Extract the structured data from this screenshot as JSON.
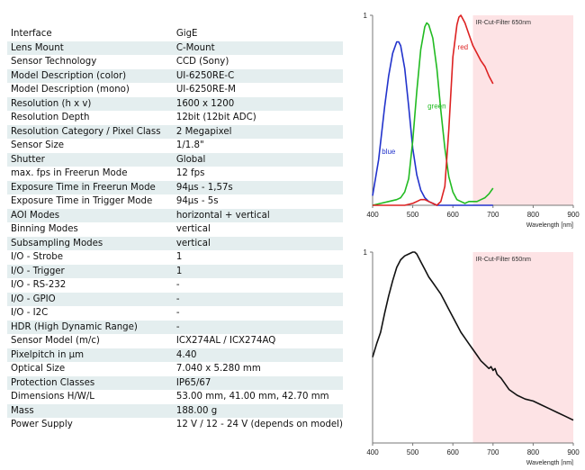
{
  "specs": [
    {
      "label": "Interface",
      "value": "GigE"
    },
    {
      "label": "Lens Mount",
      "value": "C-Mount"
    },
    {
      "label": "Sensor Technology",
      "value": "CCD (Sony)"
    },
    {
      "label": "Model Description (color)",
      "value": "UI-6250RE-C"
    },
    {
      "label": "Model Description (mono)",
      "value": "UI-6250RE-M"
    },
    {
      "label": "Resolution (h x v)",
      "value": "1600 x 1200"
    },
    {
      "label": "Resolution Depth",
      "value": "12bit (12bit ADC)"
    },
    {
      "label": "Resolution Category / Pixel Class",
      "value": "2 Megapixel"
    },
    {
      "label": "Sensor Size",
      "value": "1/1.8\""
    },
    {
      "label": "Shutter",
      "value": "Global"
    },
    {
      "label": "max. fps in Freerun Mode",
      "value": "12 fps"
    },
    {
      "label": "Exposure Time in Freerun Mode",
      "value": "94µs - 1,57s"
    },
    {
      "label": "Exposure Time in Trigger Mode",
      "value": "94µs - 5s"
    },
    {
      "label": "AOI Modes",
      "value": "horizontal + vertical"
    },
    {
      "label": "Binning Modes",
      "value": "vertical"
    },
    {
      "label": "Subsampling Modes",
      "value": "vertical"
    },
    {
      "label": "I/O - Strobe",
      "value": "1"
    },
    {
      "label": "I/O - Trigger",
      "value": "1"
    },
    {
      "label": "I/O - RS-232",
      "value": "-"
    },
    {
      "label": "I/O - GPIO",
      "value": "-"
    },
    {
      "label": "I/O - I2C",
      "value": "-"
    },
    {
      "label": "HDR (High Dynamic Range)",
      "value": "-"
    },
    {
      "label": "Sensor Model (m/c)",
      "value": "ICX274AL / ICX274AQ"
    },
    {
      "label": "Pixelpitch in µm",
      "value": "4.40"
    },
    {
      "label": "Optical Size",
      "value": "7.040 x 5.280 mm"
    },
    {
      "label": "Protection Classes",
      "value": "IP65/67"
    },
    {
      "label": "Dimensions H/W/L",
      "value": "53.00 mm, 41.00 mm, 42.70 mm"
    },
    {
      "label": "Mass",
      "value": "188.00 g"
    },
    {
      "label": "Power Supply",
      "value": "12 V / 12 - 24 V (depends on model)"
    }
  ],
  "chart_data": [
    {
      "type": "line",
      "xlabel": "Wavelength [nm]",
      "xticks": [
        400,
        500,
        600,
        700,
        800,
        900
      ],
      "xlim": [
        400,
        900
      ],
      "ylim": [
        0,
        1
      ],
      "yticks": [
        1
      ],
      "band": {
        "from": 650,
        "to": 900,
        "label": "IR-Cut-Filter 650nm",
        "color": "#fde3e5"
      },
      "series": [
        {
          "name": "blue",
          "color": "#2233cc",
          "x": [
            400,
            415,
            430,
            440,
            450,
            460,
            465,
            470,
            480,
            490,
            500,
            510,
            520,
            530,
            540,
            550,
            560,
            580,
            600,
            620,
            640,
            660,
            680,
            700
          ],
          "y": [
            0.05,
            0.24,
            0.52,
            0.68,
            0.8,
            0.86,
            0.86,
            0.84,
            0.72,
            0.52,
            0.3,
            0.16,
            0.08,
            0.04,
            0.02,
            0.01,
            0,
            0,
            0,
            0,
            0,
            0,
            0,
            0
          ]
        },
        {
          "name": "green",
          "color": "#22bb22",
          "x": [
            400,
            420,
            440,
            460,
            470,
            480,
            490,
            500,
            510,
            520,
            530,
            535,
            540,
            550,
            560,
            570,
            580,
            590,
            600,
            610,
            620,
            630,
            640,
            650,
            660,
            670,
            680,
            690,
            700
          ],
          "y": [
            0,
            0.01,
            0.02,
            0.03,
            0.04,
            0.07,
            0.14,
            0.34,
            0.6,
            0.82,
            0.94,
            0.96,
            0.95,
            0.88,
            0.72,
            0.5,
            0.3,
            0.15,
            0.07,
            0.03,
            0.02,
            0.01,
            0.02,
            0.02,
            0.02,
            0.03,
            0.04,
            0.06,
            0.09
          ]
        },
        {
          "name": "red",
          "color": "#dd2222",
          "x": [
            400,
            460,
            480,
            500,
            510,
            520,
            530,
            540,
            550,
            560,
            570,
            580,
            590,
            600,
            610,
            615,
            620,
            630,
            640,
            650,
            660,
            670,
            680,
            690,
            700
          ],
          "y": [
            0,
            0,
            0,
            0.01,
            0.02,
            0.03,
            0.03,
            0.02,
            0.01,
            0,
            0.02,
            0.1,
            0.4,
            0.78,
            0.95,
            0.99,
            1.0,
            0.96,
            0.9,
            0.84,
            0.8,
            0.76,
            0.73,
            0.68,
            0.64
          ]
        }
      ],
      "series_labels": [
        {
          "text": "blue",
          "x": 423,
          "y": 0.27,
          "color": "#2233cc"
        },
        {
          "text": "green",
          "x": 537,
          "y": 0.51,
          "color": "#22bb22"
        },
        {
          "text": "red",
          "x": 612,
          "y": 0.82,
          "color": "#dd2222"
        }
      ]
    },
    {
      "type": "line",
      "xlabel": "Wavelength [nm]",
      "xticks": [
        400,
        500,
        600,
        700,
        800,
        900
      ],
      "xlim": [
        400,
        900
      ],
      "ylim": [
        0,
        1
      ],
      "yticks": [
        1
      ],
      "band": {
        "from": 650,
        "to": 900,
        "label": "IR-Cut-Filter 650nm",
        "color": "#fde3e5"
      },
      "series": [
        {
          "color": "#111111",
          "x": [
            400,
            410,
            420,
            430,
            440,
            450,
            460,
            470,
            480,
            490,
            500,
            505,
            510,
            520,
            530,
            540,
            550,
            560,
            570,
            580,
            590,
            600,
            610,
            620,
            630,
            640,
            650,
            660,
            670,
            680,
            690,
            695,
            700,
            705,
            710,
            720,
            730,
            740,
            760,
            780,
            800,
            820,
            840,
            860,
            880,
            900
          ],
          "y": [
            0.45,
            0.52,
            0.58,
            0.68,
            0.77,
            0.85,
            0.92,
            0.96,
            0.98,
            0.99,
            1.0,
            1.0,
            0.99,
            0.95,
            0.91,
            0.87,
            0.84,
            0.81,
            0.78,
            0.74,
            0.7,
            0.66,
            0.62,
            0.58,
            0.55,
            0.52,
            0.49,
            0.46,
            0.43,
            0.41,
            0.39,
            0.4,
            0.38,
            0.39,
            0.36,
            0.34,
            0.31,
            0.28,
            0.25,
            0.23,
            0.22,
            0.2,
            0.18,
            0.16,
            0.14,
            0.12
          ]
        }
      ]
    }
  ]
}
